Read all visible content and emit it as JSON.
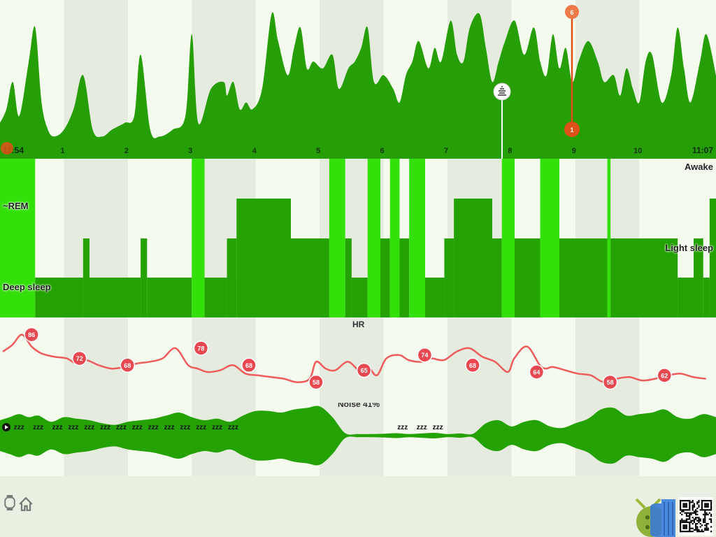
{
  "colors": {
    "activity_fill": "#269e06",
    "deep": "#23a201",
    "rem_bright": "#33e00a",
    "awake": "#33e00a",
    "hr_line": "#ee5c5c",
    "hr_marker": "#e8484f",
    "marker_orange": "#e0511a",
    "noise_fill": "#23a201",
    "background": "#f4faee"
  },
  "time_axis": {
    "start_label": "11:54",
    "end_label": "11:07",
    "hour_labels": [
      "1",
      "2",
      "3",
      "4",
      "5",
      "6",
      "7",
      "8",
      "9",
      "10"
    ]
  },
  "markers": {
    "orange_top": "6",
    "orange_bottom": "1",
    "alarm_icon": "alarm-icon"
  },
  "hypnogram": {
    "labels": {
      "awake": "Awake",
      "rem": "~REM",
      "light": "Light sleep",
      "deep": "Deep sleep"
    }
  },
  "hr": {
    "title": "HR",
    "marker_values": [
      "86",
      "72",
      "68",
      "78",
      "68",
      "58",
      "65",
      "74",
      "68",
      "64",
      "58",
      "62"
    ]
  },
  "noise": {
    "title": "Noise 41%",
    "snore_glyph": "zzz"
  },
  "footer": {
    "icons": [
      "watch-icon",
      "home-icon",
      "android-icon",
      "qr-code-icon"
    ]
  },
  "chart_data": [
    {
      "type": "area",
      "name_key": "activity",
      "x_hours": [
        0,
        0.1,
        0.2,
        0.3,
        0.45,
        0.55,
        0.65,
        0.75,
        0.85,
        1.0,
        1.15,
        1.3,
        1.45,
        1.6,
        1.75,
        1.95,
        2.1,
        2.2,
        2.35,
        2.5,
        2.7,
        2.9,
        3.0,
        3.1,
        3.3,
        3.5,
        3.55,
        3.65,
        3.75,
        3.85,
        3.95,
        4.1,
        4.25,
        4.35,
        4.5,
        4.6,
        4.7,
        4.8,
        4.9,
        5.05,
        5.2,
        5.3,
        5.45,
        5.55,
        5.65,
        5.75,
        5.85,
        6.0,
        6.15,
        6.25,
        6.35,
        6.45,
        6.55,
        6.7,
        6.8,
        6.9,
        7.05,
        7.15,
        7.25,
        7.35,
        7.5,
        7.6,
        7.7,
        7.8,
        7.9,
        8.05,
        8.2,
        8.35,
        8.45,
        8.55,
        8.65,
        8.75,
        8.85,
        8.95,
        9.05,
        9.2,
        9.35,
        9.45,
        9.6,
        9.7,
        9.8,
        9.9,
        10.0,
        10.1,
        10.2,
        10.35,
        10.5,
        10.6,
        10.7,
        10.8,
        10.95,
        11.05
      ],
      "y": [
        0.15,
        0.25,
        0.45,
        0.2,
        0.6,
        0.85,
        0.3,
        0.1,
        0.05,
        0.1,
        0.25,
        0.5,
        0.1,
        0.05,
        0.1,
        0.15,
        0.2,
        0.65,
        0.1,
        0.05,
        0.1,
        0.2,
        0.8,
        0.15,
        0.4,
        0.45,
        0.35,
        0.45,
        0.25,
        0.3,
        0.25,
        0.4,
        0.95,
        0.75,
        0.5,
        0.7,
        0.85,
        0.55,
        0.6,
        0.55,
        0.65,
        0.4,
        0.55,
        0.6,
        0.7,
        0.85,
        0.45,
        0.5,
        0.4,
        0.3,
        0.5,
        0.6,
        0.75,
        0.55,
        0.7,
        0.6,
        0.9,
        0.65,
        0.6,
        0.85,
        0.95,
        0.7,
        0.45,
        0.6,
        0.75,
        0.9,
        0.65,
        0.85,
        0.6,
        0.5,
        0.8,
        0.55,
        0.7,
        0.45,
        0.6,
        0.75,
        0.6,
        0.45,
        0.5,
        0.35,
        0.55,
        0.4,
        0.3,
        0.6,
        0.65,
        0.3,
        0.5,
        0.85,
        0.55,
        0.3,
        0.6,
        0.8
      ],
      "xlim": [
        0,
        11.2
      ]
    },
    {
      "type": "area",
      "name_key": "hypnogram",
      "stage_levels": {
        "awake": 4,
        "rem": 3,
        "light": 2,
        "deep": 1
      },
      "segments": [
        {
          "start": 0.0,
          "end": 0.55,
          "stage": "awake"
        },
        {
          "start": 0.55,
          "end": 1.3,
          "stage": "deep"
        },
        {
          "start": 1.3,
          "end": 1.4,
          "stage": "light"
        },
        {
          "start": 1.4,
          "end": 2.2,
          "stage": "deep"
        },
        {
          "start": 2.2,
          "end": 2.3,
          "stage": "light"
        },
        {
          "start": 2.3,
          "end": 3.0,
          "stage": "deep"
        },
        {
          "start": 3.0,
          "end": 3.2,
          "stage": "awake"
        },
        {
          "start": 3.2,
          "end": 3.55,
          "stage": "deep"
        },
        {
          "start": 3.55,
          "end": 3.7,
          "stage": "light"
        },
        {
          "start": 3.7,
          "end": 4.55,
          "stage": "rem"
        },
        {
          "start": 4.55,
          "end": 5.15,
          "stage": "light"
        },
        {
          "start": 5.15,
          "end": 5.4,
          "stage": "awake"
        },
        {
          "start": 5.4,
          "end": 5.5,
          "stage": "light"
        },
        {
          "start": 5.5,
          "end": 5.75,
          "stage": "deep"
        },
        {
          "start": 5.75,
          "end": 5.95,
          "stage": "awake"
        },
        {
          "start": 5.95,
          "end": 6.1,
          "stage": "light"
        },
        {
          "start": 6.1,
          "end": 6.25,
          "stage": "awake"
        },
        {
          "start": 6.25,
          "end": 6.4,
          "stage": "light"
        },
        {
          "start": 6.4,
          "end": 6.65,
          "stage": "awake"
        },
        {
          "start": 6.65,
          "end": 6.95,
          "stage": "deep"
        },
        {
          "start": 6.95,
          "end": 7.1,
          "stage": "light"
        },
        {
          "start": 7.1,
          "end": 7.7,
          "stage": "rem"
        },
        {
          "start": 7.7,
          "end": 7.85,
          "stage": "light"
        },
        {
          "start": 7.85,
          "end": 8.05,
          "stage": "awake"
        },
        {
          "start": 8.05,
          "end": 8.45,
          "stage": "light"
        },
        {
          "start": 8.45,
          "end": 8.75,
          "stage": "awake"
        },
        {
          "start": 8.75,
          "end": 9.5,
          "stage": "light"
        },
        {
          "start": 9.5,
          "end": 9.55,
          "stage": "awake"
        },
        {
          "start": 9.55,
          "end": 10.6,
          "stage": "light"
        },
        {
          "start": 10.6,
          "end": 10.85,
          "stage": "deep"
        },
        {
          "start": 10.85,
          "end": 11.0,
          "stage": "light"
        },
        {
          "start": 11.0,
          "end": 11.1,
          "stage": "deep"
        },
        {
          "start": 11.1,
          "end": 11.2,
          "stage": "rem"
        }
      ],
      "xlim": [
        0,
        11.2
      ]
    },
    {
      "type": "line",
      "name_key": "hr",
      "x_hours": [
        0.0,
        0.15,
        0.3,
        0.45,
        0.6,
        0.8,
        1.0,
        1.15,
        1.3,
        1.5,
        1.7,
        1.9,
        2.1,
        2.3,
        2.5,
        2.7,
        2.9,
        3.05,
        3.2,
        3.4,
        3.6,
        3.8,
        4.0,
        4.2,
        4.4,
        4.6,
        4.8,
        4.9,
        5.05,
        5.2,
        5.4,
        5.6,
        5.7,
        5.85,
        6.0,
        6.2,
        6.35,
        6.55,
        6.7,
        6.9,
        7.1,
        7.3,
        7.5,
        7.7,
        7.9,
        8.0,
        8.2,
        8.4,
        8.5,
        8.6,
        8.8,
        9.0,
        9.2,
        9.4,
        9.6,
        9.8,
        10.0,
        10.2,
        10.4,
        10.6,
        10.8,
        11.0
      ],
      "y": [
        76,
        80,
        86,
        79,
        75,
        73,
        72,
        69,
        71,
        68,
        66,
        67,
        69,
        70,
        72,
        78,
        68,
        66,
        64,
        65,
        68,
        63,
        62,
        61,
        60,
        58,
        60,
        70,
        66,
        65,
        70,
        64,
        68,
        62,
        72,
        74,
        71,
        70,
        72,
        71,
        76,
        78,
        73,
        70,
        64,
        72,
        79,
        68,
        66,
        67,
        65,
        63,
        62,
        58,
        60,
        61,
        59,
        60,
        62,
        63,
        61,
        60
      ],
      "labels": [
        {
          "x": 0.45,
          "v": 86
        },
        {
          "x": 1.2,
          "v": 72
        },
        {
          "x": 1.95,
          "v": 68
        },
        {
          "x": 3.1,
          "v": 78
        },
        {
          "x": 3.85,
          "v": 68
        },
        {
          "x": 4.9,
          "v": 58
        },
        {
          "x": 5.65,
          "v": 65
        },
        {
          "x": 6.6,
          "v": 74
        },
        {
          "x": 7.35,
          "v": 68
        },
        {
          "x": 8.35,
          "v": 64
        },
        {
          "x": 9.5,
          "v": 58
        },
        {
          "x": 10.35,
          "v": 62
        }
      ],
      "ylim": [
        50,
        92
      ],
      "xlim": [
        0,
        11.2
      ]
    },
    {
      "type": "area",
      "name_key": "noise",
      "x_hours": [
        0.0,
        0.15,
        0.3,
        0.45,
        0.6,
        0.8,
        1.0,
        1.2,
        1.4,
        1.6,
        1.8,
        2.0,
        2.2,
        2.4,
        2.6,
        2.8,
        3.0,
        3.2,
        3.4,
        3.6,
        3.8,
        4.0,
        4.2,
        4.4,
        4.6,
        4.8,
        5.0,
        5.2,
        5.4,
        5.6,
        5.8,
        6.0,
        6.2,
        6.4,
        6.6,
        6.8,
        7.0,
        7.2,
        7.4,
        7.6,
        7.8,
        8.0,
        8.2,
        8.4,
        8.6,
        8.8,
        9.0,
        9.2,
        9.4,
        9.6,
        9.8,
        10.0,
        10.2,
        10.4,
        10.6,
        10.8,
        11.0,
        11.2
      ],
      "y": [
        0.5,
        0.6,
        0.7,
        0.6,
        0.65,
        0.45,
        0.6,
        0.55,
        0.5,
        0.4,
        0.35,
        0.45,
        0.5,
        0.55,
        0.65,
        0.75,
        0.6,
        0.5,
        0.55,
        0.45,
        0.65,
        0.8,
        0.8,
        0.75,
        0.85,
        0.9,
        0.95,
        0.6,
        0.08,
        0.05,
        0.05,
        0.06,
        0.08,
        0.05,
        0.07,
        0.09,
        0.05,
        0.07,
        0.06,
        0.4,
        0.5,
        0.3,
        0.45,
        0.5,
        0.3,
        0.25,
        0.4,
        0.55,
        0.85,
        0.9,
        0.65,
        0.7,
        0.75,
        0.85,
        0.6,
        0.55,
        0.7,
        0.6
      ],
      "snore_hours": [
        0.15,
        0.45,
        0.75,
        1.0,
        1.25,
        1.5,
        1.75,
        2.0,
        2.25,
        2.5,
        2.75,
        3.0,
        3.25,
        3.5,
        6.15,
        6.45,
        6.7
      ],
      "ylim": [
        0,
        1
      ],
      "xlim": [
        0,
        11.2
      ]
    }
  ]
}
